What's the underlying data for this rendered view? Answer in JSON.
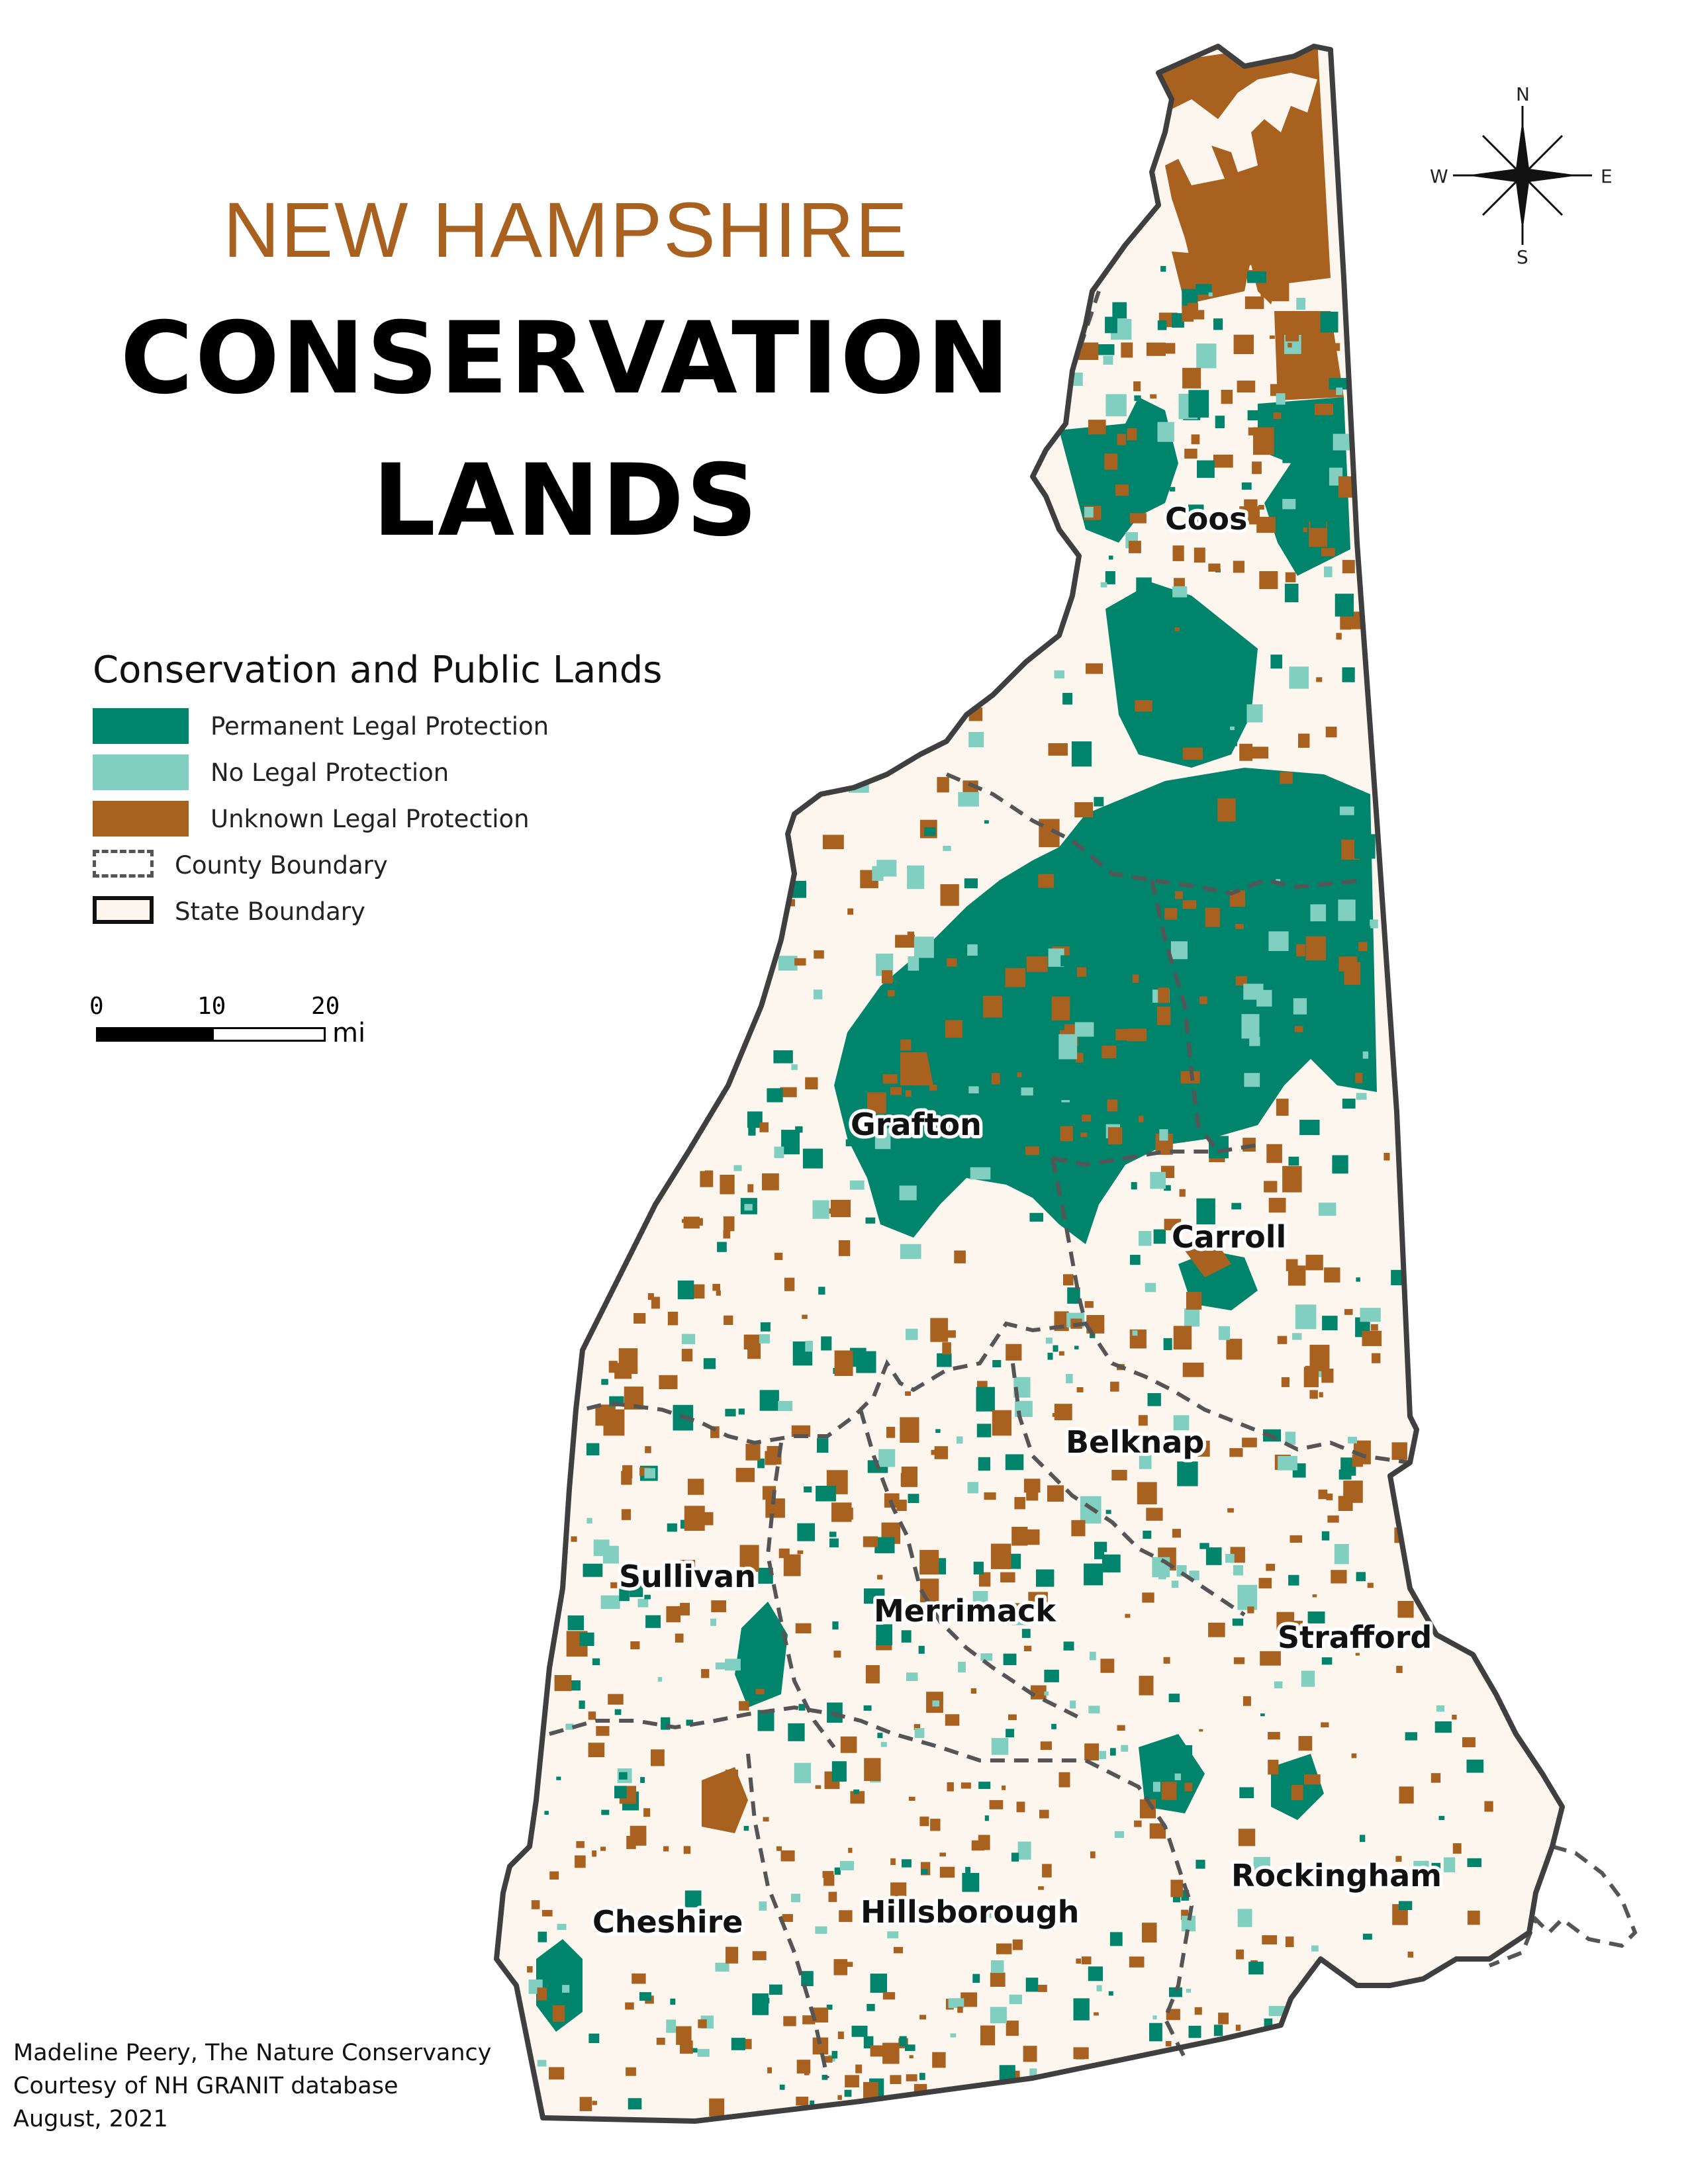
{
  "title": {
    "line1": "NEW HAMPSHIRE",
    "line2": "CONSERVATION",
    "line3": "LANDS"
  },
  "colors": {
    "permanent": "#00846b",
    "no_legal": "#80cfc1",
    "unknown": "#a8611f",
    "land": "#fdf6ee",
    "boundary": "#3f3f3f",
    "title_accent": "#a8611f"
  },
  "legend": {
    "title": "Conservation and Public Lands",
    "items": [
      {
        "label": "Permanent Legal Protection",
        "color": "#00846b",
        "kind": "fill"
      },
      {
        "label": "No Legal Protection",
        "color": "#80cfc1",
        "kind": "fill"
      },
      {
        "label": "Unknown Legal Protection",
        "color": "#a8611f",
        "kind": "fill"
      },
      {
        "label": "County Boundary",
        "kind": "dashed"
      },
      {
        "label": "State Boundary",
        "kind": "solid"
      }
    ]
  },
  "scale": {
    "ticks": [
      "0",
      "10",
      "20"
    ],
    "unit": "mi"
  },
  "compass": {
    "n": "N",
    "s": "S",
    "e": "E",
    "w": "W"
  },
  "counties": [
    {
      "name": "Coos"
    },
    {
      "name": "Grafton"
    },
    {
      "name": "Carroll"
    },
    {
      "name": "Belknap"
    },
    {
      "name": "Sullivan"
    },
    {
      "name": "Merrimack"
    },
    {
      "name": "Strafford"
    },
    {
      "name": "Rockingham"
    },
    {
      "name": "Cheshire"
    },
    {
      "name": "Hillsborough"
    }
  ],
  "credits": [
    "Madeline Peery, The Nature Conservancy",
    "Courtesy of NH GRANIT database",
    "August, 2021"
  ]
}
